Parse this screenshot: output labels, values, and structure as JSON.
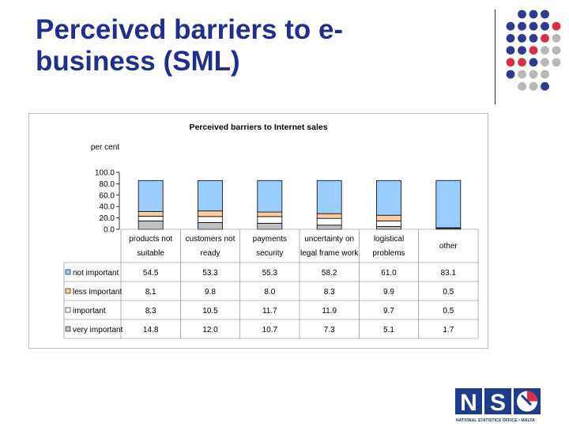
{
  "slide": {
    "title": "Perceived barriers to e-business (SML)"
  },
  "logo": {
    "letters": [
      "N",
      "S"
    ],
    "tagline": "NATIONAL STATISTICS OFFICE • MALTA"
  },
  "colors": {
    "title": "#1f2f8e",
    "dot_blue": "#2e3a93",
    "dot_red": "#d92e43",
    "dot_grey": "#b8b8b8",
    "not_important": "#99ccff",
    "less_important": "#ffcc99",
    "important": "#ffffff",
    "very_important": "#c0c0c0",
    "logo_blue": "#1d3c8c"
  },
  "chart_data": {
    "type": "bar",
    "stacked": true,
    "title": "Perceived barriers to Internet sales",
    "ylabel": "per cent",
    "ylim": [
      0,
      100
    ],
    "yticks": [
      "100.0",
      "80.0",
      "60.0",
      "40.0",
      "20.0",
      "0.0"
    ],
    "categories": [
      [
        "products not",
        "suitable"
      ],
      [
        "customers not",
        "ready"
      ],
      [
        "payments",
        "security"
      ],
      [
        "uncertainty on",
        "legal frame work"
      ],
      [
        "logistical",
        "problems"
      ],
      [
        "other"
      ]
    ],
    "series": [
      {
        "name": "very important",
        "values": [
          14.8,
          12.0,
          10.7,
          7.3,
          5.1,
          1.7
        ],
        "labels": [
          "14.8",
          "12.0",
          "10.7",
          "7.3",
          "5.1",
          "1.7"
        ]
      },
      {
        "name": "important",
        "values": [
          8.3,
          10.5,
          11.7,
          11.9,
          9.7,
          0.5
        ],
        "labels": [
          "8.3",
          "10.5",
          "11.7",
          "11.9",
          "9.7",
          "0.5"
        ]
      },
      {
        "name": "less important",
        "values": [
          8.1,
          9.8,
          8.0,
          8.3,
          9.9,
          0.5
        ],
        "labels": [
          "8.1",
          "9.8",
          "8.0",
          "8.3",
          "9.9",
          "0.5"
        ]
      },
      {
        "name": "not important",
        "values": [
          54.5,
          53.3,
          55.3,
          58.2,
          61.0,
          83.1
        ],
        "labels": [
          "54.5",
          "53.3",
          "55.3",
          "58.2",
          "61.0",
          "83.1"
        ]
      }
    ],
    "table_row_order": [
      "not important",
      "less important",
      "important",
      "very important"
    ],
    "grid": false,
    "legend": "data-table"
  }
}
